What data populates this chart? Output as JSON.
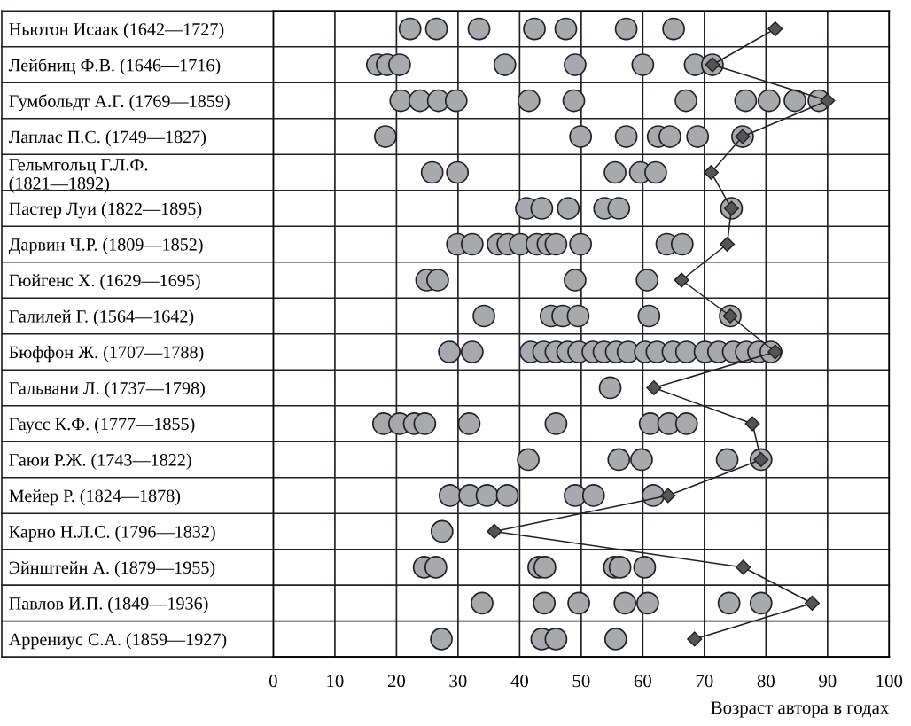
{
  "chart_data": {
    "type": "scatter",
    "orientation": "horizontal",
    "xlabel": "Возраст автора в годах",
    "categories": [
      "Ньютон Исаак (1642—1727)",
      "Лейбниц Ф.В. (1646—1716)",
      "Гумбольдт А.Г. (1769—1859)",
      "Лаплас П.С. (1749—1827)",
      "Гельмгольц Г.Л.Ф.\n(1821—1892)",
      "Пастер Луи (1822—1895)",
      "Дарвин Ч.Р. (1809—1852)",
      "Гюйгенс Х. (1629—1695)",
      "Галилей Г. (1564—1642)",
      "Бюффон Ж. (1707—1788)",
      "Гальвани Л. (1737—1798)",
      "Гаусс К.Ф. (1777—1855)",
      "Гаюи Р.Ж. (1743—1822)",
      "Мейер Р. (1824—1878)",
      "Карно Н.Л.С. (1796—1832)",
      "Эйнштейн А. (1879—1955)",
      "Павлов И.П. (1849—1936)",
      "Аррениус С.А. (1859—1927)"
    ],
    "series": [
      {
        "marker": "circle",
        "color": "#a7a9ac",
        "x": [
          "Ньютон Исаак (1642—1727)",
          "Ньютон Исаак (1642—1727)",
          "Ньютон Исаак (1642—1727)",
          "Ньютон Исаак (1642—1727)",
          "Ньютон Исаак (1642—1727)",
          "Ньютон Исаак (1642—1727)",
          "Ньютон Исаак (1642—1727)",
          "Лейбниц Ф.В. (1646—1716)",
          "Лейбниц Ф.В. (1646—1716)",
          "Лейбниц Ф.В. (1646—1716)",
          "Лейбниц Ф.В. (1646—1716)",
          "Лейбниц Ф.В. (1646—1716)",
          "Лейбниц Ф.В. (1646—1716)",
          "Лейбниц Ф.В. (1646—1716)",
          "Лейбниц Ф.В. (1646—1716)",
          "Гумбольдт А.Г. (1769—1859)",
          "Гумбольдт А.Г. (1769—1859)",
          "Гумбольдт А.Г. (1769—1859)",
          "Гумбольдт А.Г. (1769—1859)",
          "Гумбольдт А.Г. (1769—1859)",
          "Гумбольдт А.Г. (1769—1859)",
          "Гумбольдт А.Г. (1769—1859)",
          "Гумбольдт А.Г. (1769—1859)",
          "Гумбольдт А.Г. (1769—1859)",
          "Гумбольдт А.Г. (1769—1859)",
          "Гумбольдт А.Г. (1769—1859)",
          "Лаплас П.С. (1749—1827)",
          "Лаплас П.С. (1749—1827)",
          "Лаплас П.С. (1749—1827)",
          "Лаплас П.С. (1749—1827)",
          "Лаплас П.С. (1749—1827)",
          "Лаплас П.С. (1749—1827)",
          "Лаплас П.С. (1749—1827)",
          "Гельмгольц Г.Л.Ф.\n(1821—1892)",
          "Гельмгольц Г.Л.Ф.\n(1821—1892)",
          "Гельмгольц Г.Л.Ф.\n(1821—1892)",
          "Гельмгольц Г.Л.Ф.\n(1821—1892)",
          "Гельмгольц Г.Л.Ф.\n(1821—1892)",
          "Пастер Луи (1822—1895)",
          "Пастер Луи (1822—1895)",
          "Пастер Луи (1822—1895)",
          "Пастер Луи (1822—1895)",
          "Пастер Луи (1822—1895)",
          "Пастер Луи (1822—1895)",
          "Дарвин Ч.Р. (1809—1852)",
          "Дарвин Ч.Р. (1809—1852)",
          "Дарвин Ч.Р. (1809—1852)",
          "Дарвин Ч.Р. (1809—1852)",
          "Дарвин Ч.Р. (1809—1852)",
          "Дарвин Ч.Р. (1809—1852)",
          "Дарвин Ч.Р. (1809—1852)",
          "Дарвин Ч.Р. (1809—1852)",
          "Дарвин Ч.Р. (1809—1852)",
          "Дарвин Ч.Р. (1809—1852)",
          "Дарвин Ч.Р. (1809—1852)",
          "Гюйгенс Х. (1629—1695)",
          "Гюйгенс Х. (1629—1695)",
          "Гюйгенс Х. (1629—1695)",
          "Гюйгенс Х. (1629—1695)",
          "Галилей Г. (1564—1642)",
          "Галилей Г. (1564—1642)",
          "Галилей Г. (1564—1642)",
          "Галилей Г. (1564—1642)",
          "Галилей Г. (1564—1642)",
          "Галилей Г. (1564—1642)",
          "Бюффон Ж. (1707—1788)",
          "Бюффон Ж. (1707—1788)",
          "Бюффон Ж. (1707—1788)",
          "Бюффон Ж. (1707—1788)",
          "Бюффон Ж. (1707—1788)",
          "Бюффон Ж. (1707—1788)",
          "Бюффон Ж. (1707—1788)",
          "Бюффон Ж. (1707—1788)",
          "Бюффон Ж. (1707—1788)",
          "Бюффон Ж. (1707—1788)",
          "Бюффон Ж. (1707—1788)",
          "Бюффон Ж. (1707—1788)",
          "Бюффон Ж. (1707—1788)",
          "Бюффон Ж. (1707—1788)",
          "Бюффон Ж. (1707—1788)",
          "Бюффон Ж. (1707—1788)",
          "Бюффон Ж. (1707—1788)",
          "Бюффон Ж. (1707—1788)",
          "Бюффон Ж. (1707—1788)",
          "Бюффон Ж. (1707—1788)",
          "Бюффон Ж. (1707—1788)",
          "Гальвани Л. (1737—1798)",
          "Гаусс К.Ф. (1777—1855)",
          "Гаусс К.Ф. (1777—1855)",
          "Гаусс К.Ф. (1777—1855)",
          "Гаусс К.Ф. (1777—1855)",
          "Гаусс К.Ф. (1777—1855)",
          "Гаусс К.Ф. (1777—1855)",
          "Гаусс К.Ф. (1777—1855)",
          "Гаусс К.Ф. (1777—1855)",
          "Гаусс К.Ф. (1777—1855)",
          "Гаюи Р.Ж. (1743—1822)",
          "Гаюи Р.Ж. (1743—1822)",
          "Гаюи Р.Ж. (1743—1822)",
          "Гаюи Р.Ж. (1743—1822)",
          "Гаюи Р.Ж. (1743—1822)",
          "Мейер Р. (1824—1878)",
          "Мейер Р. (1824—1878)",
          "Мейер Р. (1824—1878)",
          "Мейер Р. (1824—1878)",
          "Мейер Р. (1824—1878)",
          "Мейер Р. (1824—1878)",
          "Мейер Р. (1824—1878)",
          "Карно Н.Л.С. (1796—1832)",
          "Эйнштейн А. (1879—1955)",
          "Эйнштейн А. (1879—1955)",
          "Эйнштейн А. (1879—1955)",
          "Эйнштейн А. (1879—1955)",
          "Эйнштейн А. (1879—1955)",
          "Эйнштейн А. (1879—1955)",
          "Эйнштейн А. (1879—1955)",
          "Павлов И.П. (1849—1936)",
          "Павлов И.П. (1849—1936)",
          "Павлов И.П. (1849—1936)",
          "Павлов И.П. (1849—1936)",
          "Павлов И.П. (1849—1936)",
          "Павлов И.П. (1849—1936)",
          "Павлов И.П. (1849—1936)",
          "Аррениус С.А. (1859—1927)",
          "Аррениус С.А. (1859—1927)",
          "Аррениус С.А. (1859—1927)",
          "Аррениус С.А. (1859—1927)"
        ],
        "values": [
          22.2,
          26.5,
          33.4,
          42.4,
          47.5,
          57.3,
          65.0,
          16.9,
          18.5,
          20.5,
          37.6,
          49.0,
          60.0,
          68.5,
          71.3,
          20.7,
          23.8,
          26.8,
          29.7,
          41.5,
          48.8,
          67.0,
          76.7,
          80.5,
          84.7,
          88.6,
          18.2,
          49.9,
          57.3,
          62.5,
          64.4,
          68.9,
          76.2,
          25.8,
          29.9,
          55.5,
          59.6,
          62.1,
          41.1,
          43.6,
          47.9,
          53.8,
          56.1,
          74.4,
          29.9,
          32.3,
          36.5,
          38.1,
          40.1,
          42.8,
          44.6,
          45.9,
          49.9,
          63.9,
          66.4,
          24.9,
          26.7,
          49.0,
          60.7,
          34.2,
          45.1,
          47.0,
          49.5,
          61.0,
          74.2,
          28.6,
          32.3,
          41.8,
          43.9,
          45.9,
          47.8,
          49.6,
          51.9,
          53.7,
          55.7,
          57.6,
          60.4,
          62.3,
          64.9,
          67.1,
          70.1,
          72.3,
          74.7,
          76.8,
          78.8,
          80.8,
          54.7,
          17.9,
          20.5,
          22.9,
          24.6,
          31.8,
          45.9,
          61.2,
          64.2,
          67.1,
          41.4,
          56.1,
          59.8,
          73.7,
          79.2,
          28.7,
          31.9,
          34.7,
          38.0,
          49.0,
          52.0,
          61.7,
          27.4,
          24.5,
          26.4,
          43.1,
          44.1,
          55.4,
          56.3,
          60.3,
          33.9,
          44.0,
          49.6,
          57.1,
          60.8,
          74.0,
          79.2,
          27.3,
          43.6,
          45.9,
          55.6
        ]
      },
      {
        "type": "line",
        "marker": "diamond",
        "color": "#555555",
        "values": [
          81.5,
          71.3,
          90.0,
          76.2,
          71.1,
          74.4,
          73.7,
          66.3,
          74.2,
          81.5,
          61.8,
          77.8,
          79.2,
          64.1,
          35.9,
          76.3,
          87.5,
          68.4
        ]
      }
    ],
    "xlim": [
      0,
      100
    ],
    "xticks": [
      0,
      10,
      20,
      30,
      40,
      50,
      60,
      70,
      80,
      90,
      100
    ],
    "grid": true
  }
}
